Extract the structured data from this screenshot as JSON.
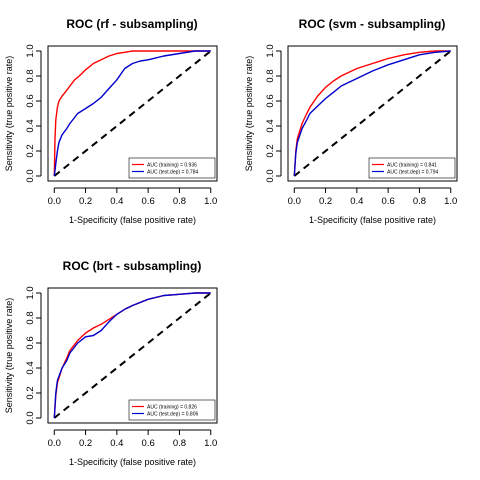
{
  "chart_data": [
    {
      "type": "line",
      "title": "ROC (rf - subsampling)",
      "xlabel": "1-Specificity (false positive rate)",
      "ylabel": "Sensitivity (true positive rate)",
      "xlim": [
        0,
        1
      ],
      "ylim": [
        0,
        1
      ],
      "ticks": [
        "0.0",
        "0.2",
        "0.4",
        "0.6",
        "0.8",
        "1.0"
      ],
      "grid": false,
      "legend_position": "bottom-right",
      "series": [
        {
          "name": "AUC (training) = 0.936",
          "color": "#ff0000",
          "x": [
            0,
            0.005,
            0.01,
            0.02,
            0.03,
            0.05,
            0.07,
            0.1,
            0.13,
            0.16,
            0.2,
            0.25,
            0.3,
            0.35,
            0.4,
            0.45,
            0.5,
            0.6,
            0.7,
            0.8,
            0.9,
            1.0
          ],
          "y": [
            0,
            0.3,
            0.45,
            0.55,
            0.6,
            0.64,
            0.67,
            0.72,
            0.77,
            0.8,
            0.85,
            0.9,
            0.93,
            0.96,
            0.98,
            0.99,
            1.0,
            1.0,
            1.0,
            1.0,
            1.0,
            1.0
          ]
        },
        {
          "name": "AUC (test.dep) = 0.784",
          "color": "#0000cc",
          "x": [
            0,
            0.01,
            0.02,
            0.03,
            0.05,
            0.08,
            0.1,
            0.15,
            0.2,
            0.25,
            0.3,
            0.35,
            0.4,
            0.45,
            0.5,
            0.55,
            0.6,
            0.7,
            0.8,
            0.9,
            1.0
          ],
          "y": [
            0,
            0.1,
            0.2,
            0.27,
            0.33,
            0.38,
            0.42,
            0.5,
            0.54,
            0.58,
            0.63,
            0.7,
            0.77,
            0.86,
            0.9,
            0.92,
            0.93,
            0.96,
            0.98,
            1.0,
            1.0
          ]
        }
      ],
      "reference_line": {
        "x": [
          0,
          1
        ],
        "y": [
          0,
          1
        ],
        "style": "dashed",
        "color": "#000000"
      }
    },
    {
      "type": "line",
      "title": "ROC (svm - subsampling)",
      "xlabel": "1-Specificity (false positive rate)",
      "ylabel": "Sensitivity (true positive rate)",
      "xlim": [
        0,
        1
      ],
      "ylim": [
        0,
        1
      ],
      "ticks": [
        "0.0",
        "0.2",
        "0.4",
        "0.6",
        "0.8",
        "1.0"
      ],
      "grid": false,
      "legend_position": "bottom-right",
      "series": [
        {
          "name": "AUC (training) = 0.841",
          "color": "#ff0000",
          "x": [
            0,
            0.01,
            0.02,
            0.05,
            0.08,
            0.1,
            0.15,
            0.2,
            0.25,
            0.3,
            0.35,
            0.4,
            0.5,
            0.6,
            0.7,
            0.8,
            0.9,
            1.0
          ],
          "y": [
            0,
            0.2,
            0.3,
            0.42,
            0.5,
            0.55,
            0.64,
            0.71,
            0.76,
            0.8,
            0.83,
            0.86,
            0.9,
            0.94,
            0.97,
            0.99,
            1.0,
            1.0
          ]
        },
        {
          "name": "AUC (test.dep) = 0.794",
          "color": "#0000cc",
          "x": [
            0,
            0.01,
            0.02,
            0.05,
            0.08,
            0.1,
            0.15,
            0.2,
            0.25,
            0.3,
            0.35,
            0.4,
            0.5,
            0.6,
            0.7,
            0.8,
            0.9,
            1.0
          ],
          "y": [
            0,
            0.18,
            0.27,
            0.38,
            0.45,
            0.5,
            0.56,
            0.62,
            0.67,
            0.72,
            0.75,
            0.78,
            0.84,
            0.89,
            0.93,
            0.97,
            0.99,
            1.0
          ]
        }
      ],
      "reference_line": {
        "x": [
          0,
          1
        ],
        "y": [
          0,
          1
        ],
        "style": "dashed",
        "color": "#000000"
      }
    },
    {
      "type": "line",
      "title": "ROC (brt - subsampling)",
      "xlabel": "1-Specificity (false positive rate)",
      "ylabel": "Sensitivity (true positive rate)",
      "xlim": [
        0,
        1
      ],
      "ylim": [
        0,
        1
      ],
      "ticks": [
        "0.0",
        "0.2",
        "0.4",
        "0.6",
        "0.8",
        "1.0"
      ],
      "grid": false,
      "legend_position": "bottom-right",
      "series": [
        {
          "name": "AUC (training) = 0.826",
          "color": "#ff0000",
          "x": [
            0,
            0.01,
            0.02,
            0.05,
            0.08,
            0.1,
            0.15,
            0.2,
            0.25,
            0.3,
            0.35,
            0.4,
            0.45,
            0.5,
            0.6,
            0.7,
            0.8,
            0.9,
            1.0
          ],
          "y": [
            0,
            0.18,
            0.28,
            0.4,
            0.48,
            0.54,
            0.62,
            0.68,
            0.72,
            0.75,
            0.79,
            0.83,
            0.87,
            0.9,
            0.95,
            0.98,
            0.99,
            1.0,
            1.0
          ]
        },
        {
          "name": "AUC (test.dep) = 0.806",
          "color": "#0000cc",
          "x": [
            0,
            0.01,
            0.02,
            0.05,
            0.08,
            0.1,
            0.15,
            0.2,
            0.25,
            0.3,
            0.35,
            0.4,
            0.45,
            0.5,
            0.6,
            0.7,
            0.8,
            0.9,
            1.0
          ],
          "y": [
            0,
            0.2,
            0.3,
            0.4,
            0.46,
            0.52,
            0.6,
            0.65,
            0.66,
            0.7,
            0.77,
            0.83,
            0.87,
            0.9,
            0.95,
            0.98,
            0.99,
            1.0,
            1.0
          ]
        }
      ],
      "reference_line": {
        "x": [
          0,
          1
        ],
        "y": [
          0,
          1
        ],
        "style": "dashed",
        "color": "#000000"
      }
    }
  ]
}
